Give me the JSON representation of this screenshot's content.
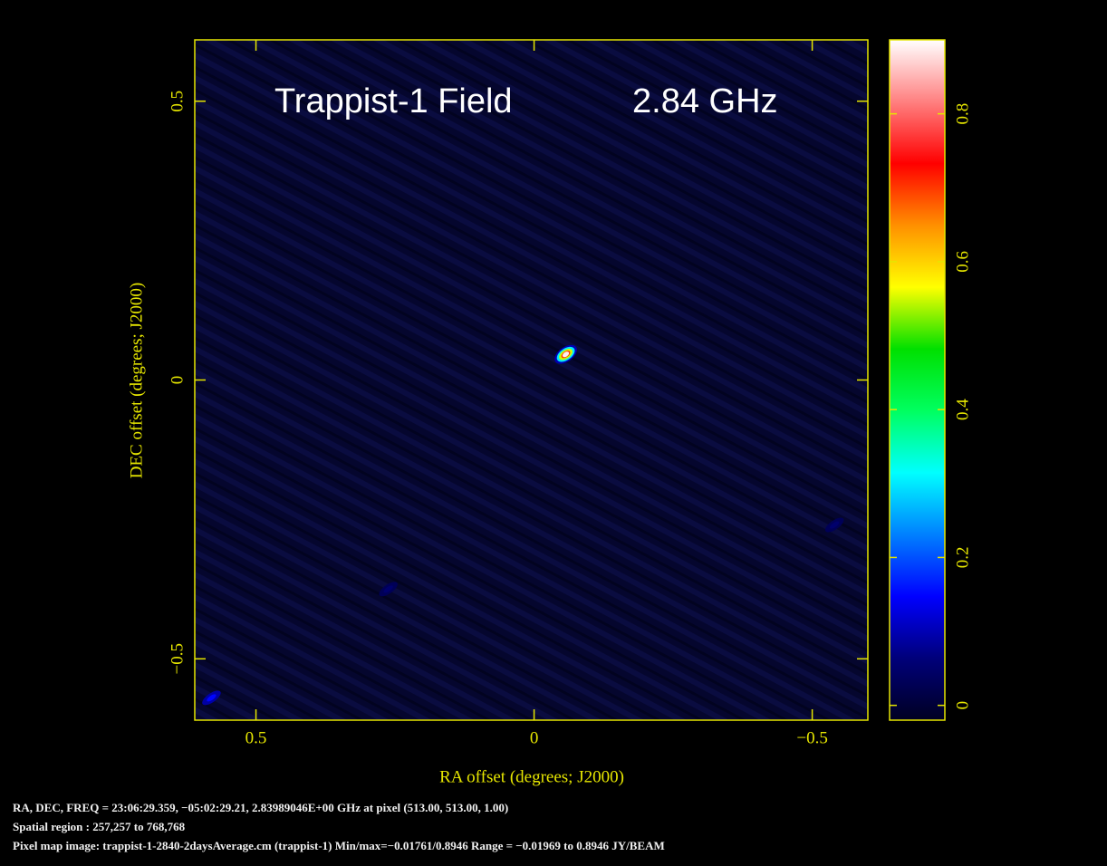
{
  "chart_data": {
    "type": "image",
    "annotations": [
      "Trappist-1 Field",
      "2.84 GHz"
    ],
    "x_label": "RA offset (degrees; J2000)",
    "y_label": "DEC offset (degrees; J2000)",
    "xlim": [
      0.61,
      -0.6
    ],
    "ylim": [
      -0.61,
      0.61
    ],
    "xticks": [
      0.5,
      0,
      {
        "value": -0.5,
        "label": "−0.5"
      }
    ],
    "yticks": [
      {
        "value": -0.5,
        "label": "−0.5"
      },
      0,
      0.5
    ],
    "clim": [
      -0.02,
      0.9
    ],
    "cticks": [
      0,
      0.2,
      0.4,
      0.6,
      0.8
    ],
    "colormap": [
      "#000022",
      "#00007a",
      "#0000ff",
      "#0080ff",
      "#00ffff",
      "#00ff60",
      "#00e000",
      "#ffff00",
      "#ff9000",
      "#ff0000",
      "#ff8080",
      "#ffffff"
    ],
    "axis_color": "#e6e600",
    "sources": {
      "x": [
        -0.057,
        0.262,
        -0.54,
        0.58
      ],
      "y": [
        0.046,
        -0.375,
        -0.26,
        -0.57
      ],
      "values": [
        0.89,
        0.05,
        0.05,
        0.15
      ]
    },
    "status_lines": [
      "RA, DEC, FREQ = 23:06:29.359, −05:02:29.21, 2.83989046E+00 GHz at pixel (513.00, 513.00, 1.00)",
      "Spatial region : 257,257 to 768,768",
      "Pixel map image: trappist-1-2840-2daysAverage.cm (trappist-1)  Min/max=−0.01761/0.8946  Range = −0.01969 to 0.8946 JY/BEAM"
    ]
  }
}
